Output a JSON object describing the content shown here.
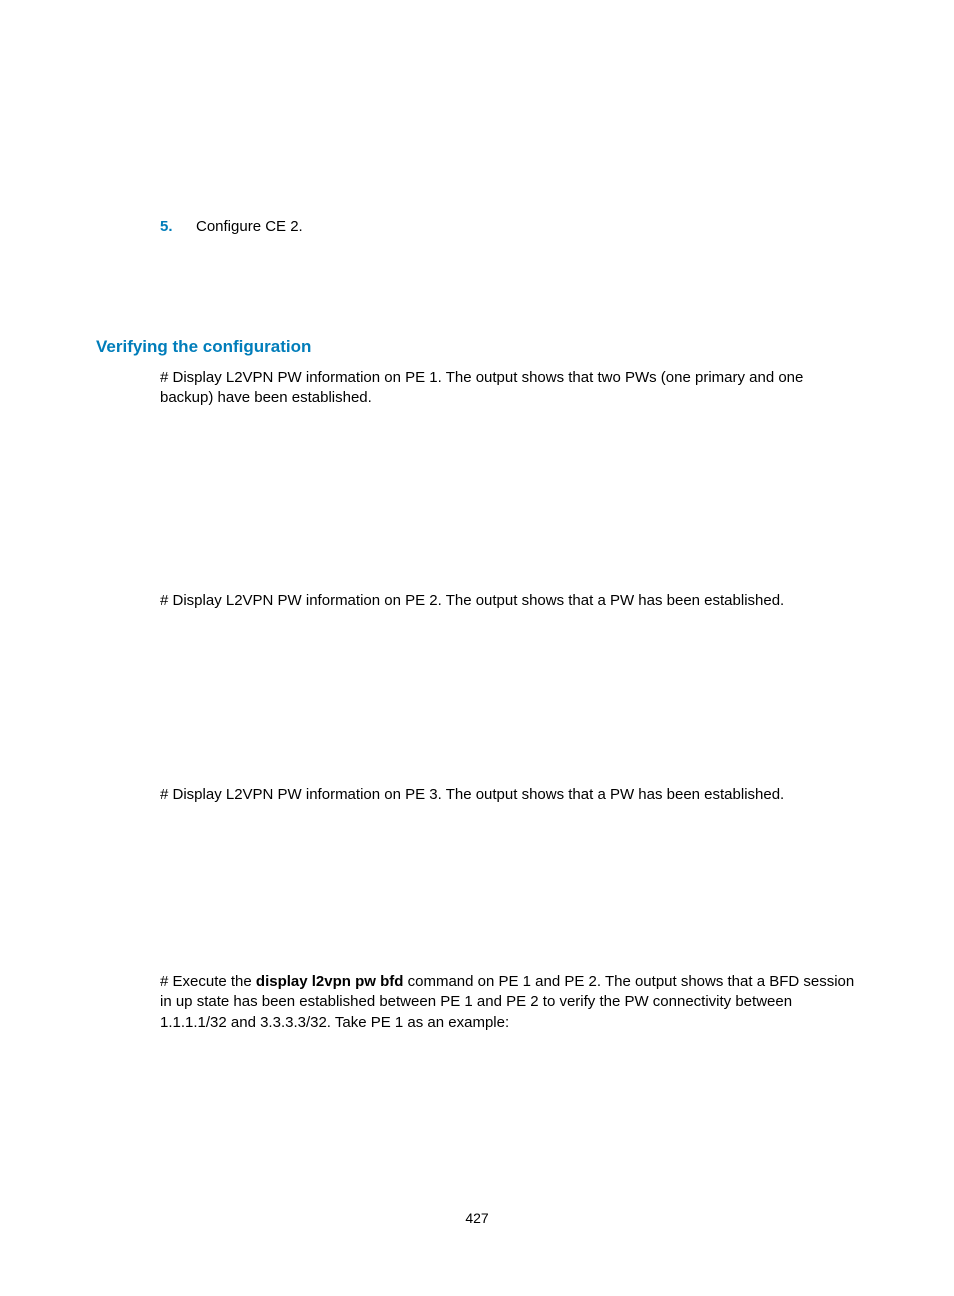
{
  "colors": {
    "accent": "#007dba",
    "text": "#000000",
    "background": "#ffffff"
  },
  "typography": {
    "body_font_size_pt": 11,
    "heading_font_size_pt": 13,
    "font_family": "Arial"
  },
  "step": {
    "number": "5.",
    "text": "Configure CE 2."
  },
  "section_heading": "Verifying the configuration",
  "paragraphs": {
    "p1": "# Display L2VPN PW information on PE 1. The output shows that two PWs (one primary and one backup) have been established.",
    "p2": "# Display L2VPN PW information on PE 2. The output shows that a PW has been established.",
    "p3": "# Display L2VPN PW information on PE 3. The output shows that a PW has been established.",
    "p4_prefix": "# Execute the ",
    "p4_bold": "display l2vpn pw bfd",
    "p4_suffix": " command on PE 1 and PE 2. The output shows that a BFD session in up state has been established between PE 1 and PE 2 to verify the PW connectivity between 1.1.1.1/32 and 3.3.3.3/32. Take PE 1 as an example:"
  },
  "page_number": "427"
}
